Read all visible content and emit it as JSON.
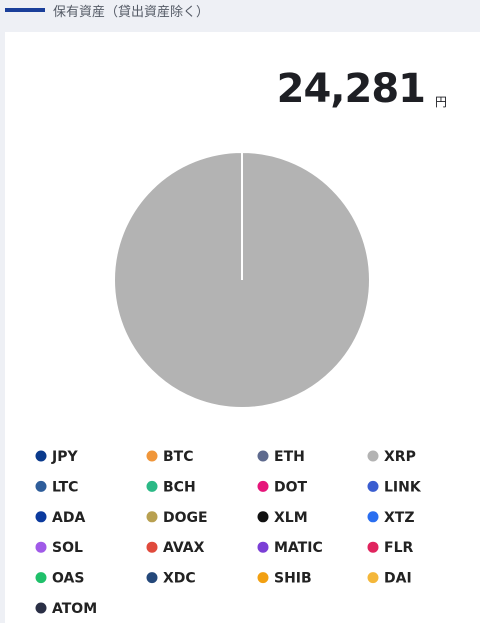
{
  "header": {
    "title": "保有資産（貸出資産除く）"
  },
  "total": {
    "amount": "24,281",
    "unit": "円"
  },
  "chart_data": {
    "type": "pie",
    "categories": [
      "JPY",
      "BTC",
      "ETH",
      "XRP",
      "LTC",
      "BCH",
      "DOT",
      "LINK",
      "ADA",
      "DOGE",
      "XLM",
      "XTZ",
      "SOL",
      "AVAX",
      "MATIC",
      "FLR",
      "OAS",
      "XDC",
      "SHIB",
      "DAI",
      "ATOM"
    ],
    "values": [
      0,
      0,
      0,
      100,
      0,
      0,
      0,
      0,
      0,
      0,
      0,
      0,
      0,
      0,
      0,
      0,
      0,
      0,
      0,
      0,
      0
    ],
    "colors": [
      "#0a3a8c",
      "#f0963a",
      "#5e6a8e",
      "#b3b3b3",
      "#2e5d9a",
      "#2bb986",
      "#e6157a",
      "#3a5dd0",
      "#0b3a9e",
      "#b8a050",
      "#111111",
      "#2a6ef0",
      "#a05ae8",
      "#e04a3c",
      "#7b3fd6",
      "#e0245e",
      "#1fc06a",
      "#24487a",
      "#f2a012",
      "#f4b73a",
      "#2a2f45"
    ]
  }
}
